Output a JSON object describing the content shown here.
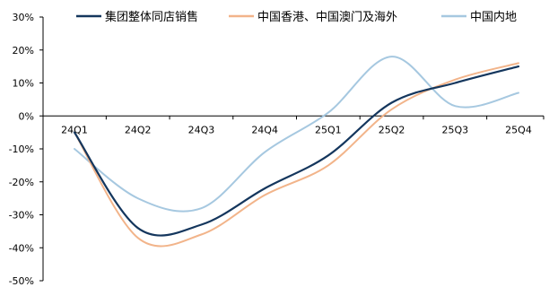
{
  "chart_data": {
    "type": "line",
    "categories": [
      "24Q1",
      "24Q2",
      "24Q3",
      "24Q4",
      "25Q1",
      "25Q2",
      "25Q3",
      "25Q4"
    ],
    "y_tick_labels": [
      "30%",
      "20%",
      "10%",
      "0%",
      "-10%",
      "-20%",
      "-30%",
      "-40%",
      "-50%"
    ],
    "ylim": [
      -50,
      30
    ],
    "y_unit": "%",
    "grid": false,
    "legend_position": "top",
    "series": [
      {
        "name": "集团整体同店销售",
        "color": "#14365D",
        "values": [
          -5,
          -34,
          -33,
          -22,
          -12,
          4,
          10,
          15
        ]
      },
      {
        "name": "中国香港、中国澳门及海外",
        "color": "#F2B48A",
        "values": [
          -5,
          -37,
          -36,
          -24,
          -15,
          2,
          11,
          16
        ]
      },
      {
        "name": "中国内地",
        "color": "#A6C8E0",
        "values": [
          -10,
          -25,
          -28,
          -11,
          1,
          18,
          3,
          7
        ]
      }
    ]
  }
}
